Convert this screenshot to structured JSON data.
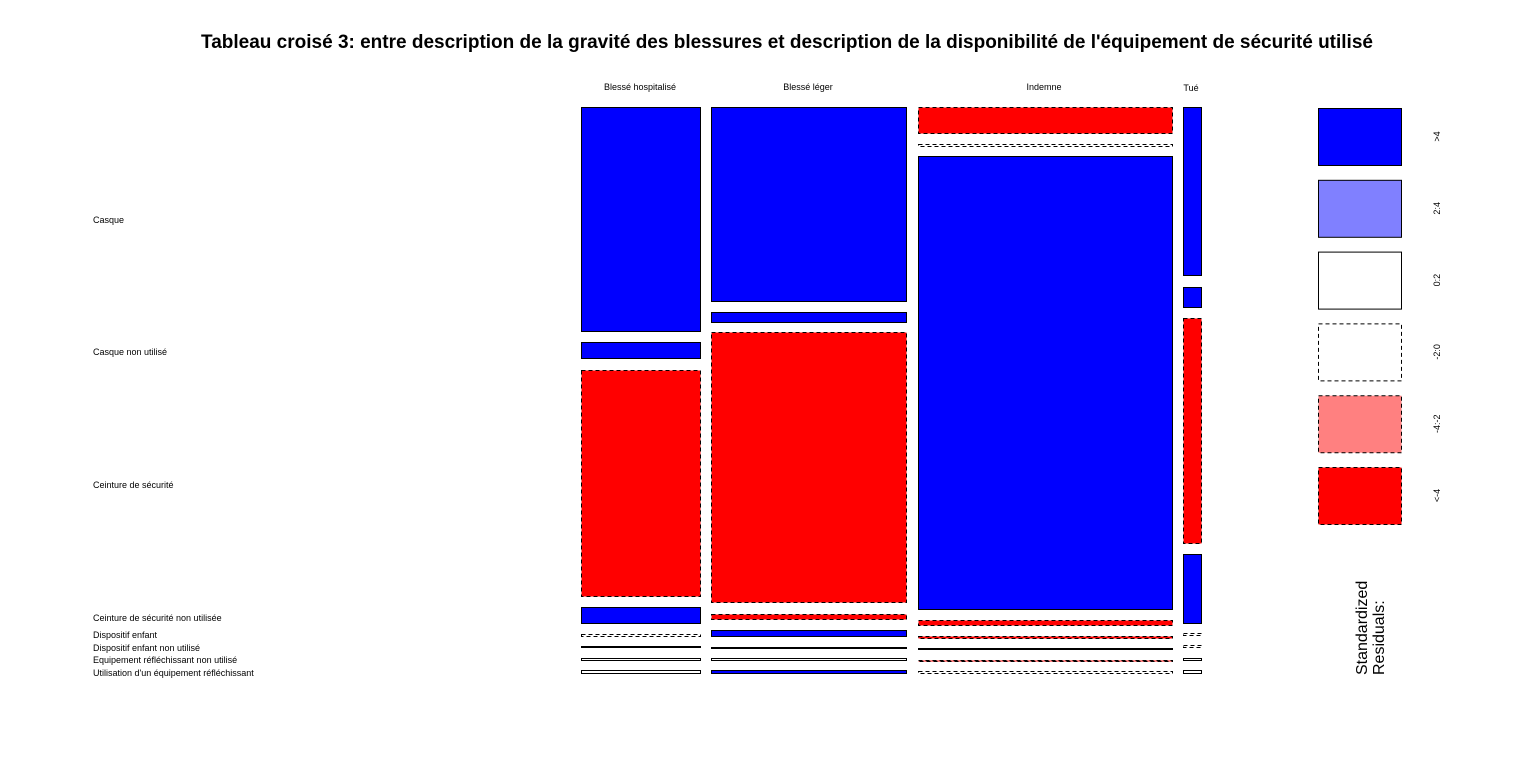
{
  "chart_data": {
    "type": "mosaic",
    "title": "Tableau croisé 3: entre description de la gravité des blessures et description de la disponibilité de l'équipement de sécurité utilisé",
    "columns": [
      "Blessé hospitalisé",
      "Blessé léger",
      "Indemne",
      "Tué"
    ],
    "rows": [
      "Casque",
      "Casque non utilisé",
      "Ceinture de sécurité",
      "Ceinture de sécurité non utilisée",
      "Dispositif enfant",
      "Dispositif enfant non utilisé",
      "Equipement réfléchissant non utilisé",
      "Utilisation d'un équipement réfléchissant"
    ],
    "residual_class": [
      [
        ">4",
        ">4",
        "<-4",
        ">4"
      ],
      [
        ">4",
        ">4",
        "-2:0",
        ">4"
      ],
      [
        "<-4",
        "<-4",
        ">4",
        "<-4"
      ],
      [
        ">4",
        "<-4",
        "<-4",
        ">4"
      ],
      [
        "-2:0",
        ">4",
        "<-4",
        "-2:0"
      ],
      [
        "0:2",
        "0:2",
        "0:2",
        "-2:0"
      ],
      [
        "0:2",
        "0:2",
        "<-4",
        "0:2"
      ],
      [
        "0:2",
        ">4",
        "-2:0",
        "0:2"
      ]
    ],
    "legend": {
      "title_lines": [
        "Standardized",
        "Residuals:"
      ],
      "items": [
        {
          "label": ">4",
          "fill": "#0000ff",
          "dashed": false
        },
        {
          "label": "2:4",
          "fill": "#8080ff",
          "dashed": false
        },
        {
          "label": "0:2",
          "fill": "#ffffff",
          "dashed": false
        },
        {
          "label": "-2:0",
          "fill": "#ffffff",
          "dashed": true
        },
        {
          "label": "-4:-2",
          "fill": "#ff8080",
          "dashed": true
        },
        {
          "label": "<-4",
          "fill": "#ff0000",
          "dashed": true
        }
      ]
    }
  }
}
